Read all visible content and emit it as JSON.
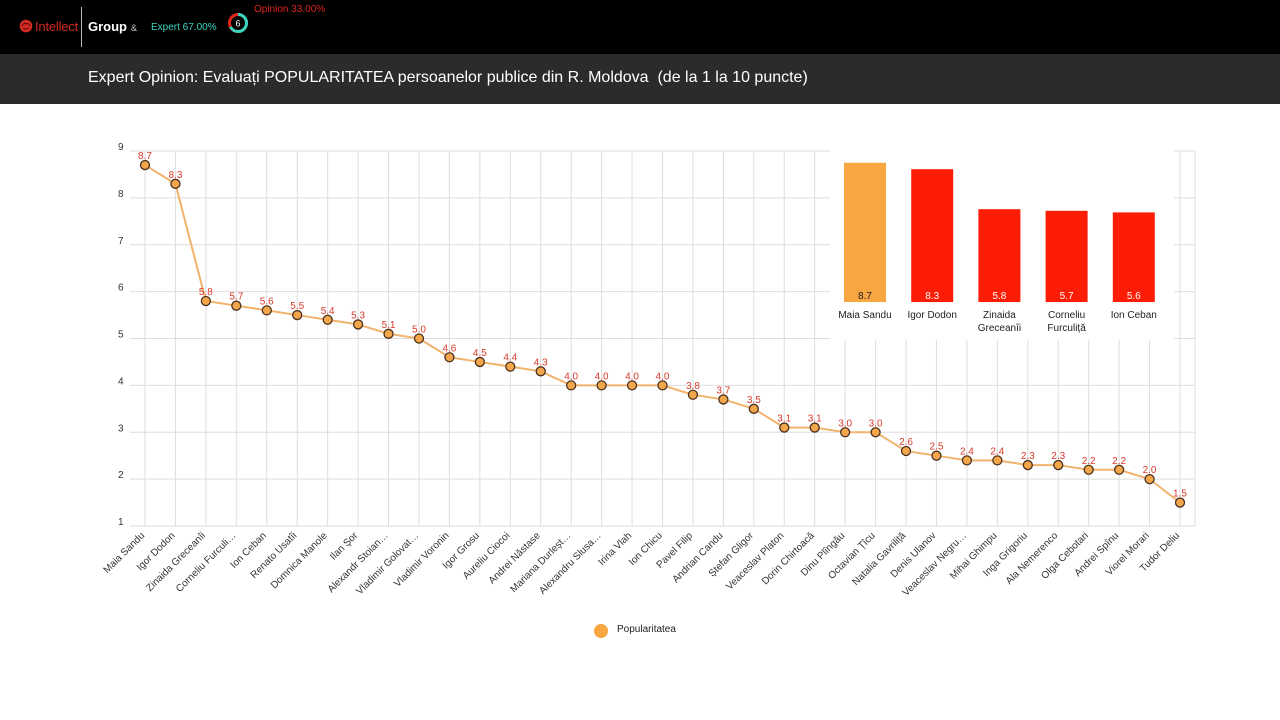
{
  "header": {
    "logo_text": "Intellect",
    "logo_group": "Group",
    "logo_amp": "&",
    "expert_share": "Expert 67.00%",
    "opinion_share": "Opinion 33.00%",
    "donut_center": "6",
    "donut_expert_fraction": 0.67
  },
  "page_title": "Expert Opinion: Evaluați POPULARITATEA persoanelor publice din R. Moldova  (de la 1 la 10 puncte)",
  "colors": {
    "line": "#f2b36d",
    "marker": "#f3a64a",
    "marker_stroke": "#4a3120",
    "label": "#d83a2c",
    "bar_highlight": "#f7a642",
    "bar": "#fd1d07",
    "grid": "#dddddd"
  },
  "chart_data": [
    {
      "type": "line",
      "series": [
        {
          "name": "Popularitatea",
          "values": [
            8.7,
            8.3,
            5.8,
            5.7,
            5.6,
            5.5,
            5.4,
            5.3,
            5.1,
            5.0,
            4.6,
            4.5,
            4.4,
            4.3,
            4.0,
            4.0,
            4.0,
            4.0,
            3.8,
            3.7,
            3.5,
            3.1,
            3.1,
            3.0,
            3.0,
            2.6,
            2.5,
            2.4,
            2.4,
            2.3,
            2.3,
            2.2,
            2.2,
            2.0,
            1.5
          ]
        }
      ],
      "categories": [
        "Maia Sandu",
        "Igor Dodon",
        "Zinaida Greceanîi",
        "Corneliu Furculi…",
        "Ion Ceban",
        "Renato Usatîi",
        "Domnica Manole",
        "Ilan Şor",
        "Alexandr Stoian…",
        "Vladimir Golovat…",
        "Vladimir Voronin",
        "Igor Grosu",
        "Aureliu Ciocoi",
        "Andrei Năstase",
        "Mariana Durleșt…",
        "Alexandru Slusa…",
        "Irina Vlah",
        "Ion Chicu",
        "Pavel Filip",
        "Andrian Candu",
        "Ștefan Gligor",
        "Veaceslav Platon",
        "Dorin Chirtoacă",
        "Dinu Plîngău",
        "Octavian Țîcu",
        "Natalia Gavriliță",
        "Denis Ulanov",
        "Veaceslav Negru…",
        "Mihai Ghimpu",
        "Inga Grigoriu",
        "Ala Nemerenco",
        "Olga Cebotari",
        "Andrei Spînu",
        "Viorel Morari",
        "Tudor Deliu"
      ],
      "value_labels": [
        "8.7",
        "8.3",
        "5.8",
        "5.7",
        "5.6",
        "5.5",
        "5.4",
        "5.3",
        "5.1",
        "5.0",
        "4.6",
        "4.5",
        "4.4",
        "4.3",
        "4.0",
        "4.0",
        "4.0",
        "4.0",
        "3.8",
        "3.7",
        "3.5",
        "3.1",
        "3.1",
        "3.0",
        "3.0",
        "2.6",
        "2.5",
        "2.4",
        "2.4",
        "2.3",
        "2.3",
        "2.2",
        "2.2",
        "2.0",
        "1.5"
      ],
      "ylim": [
        1,
        9
      ],
      "yticks": [
        "1",
        "2",
        "3",
        "4",
        "5",
        "6",
        "7",
        "8",
        "9"
      ],
      "grid": true,
      "legend": "bottom"
    },
    {
      "type": "bar",
      "categories": [
        "Maia Sandu",
        "Igor Dodon",
        "Zinaida Greceanîi",
        "Corneliu Furculiță",
        "Ion Ceban"
      ],
      "category_lines": [
        [
          "Maia Sandu"
        ],
        [
          "Igor Dodon"
        ],
        [
          "Zinaida",
          "Greceanîi"
        ],
        [
          "Corneliu",
          "Furculiță"
        ],
        [
          "Ion Ceban"
        ]
      ],
      "values": [
        8.7,
        8.3,
        5.8,
        5.7,
        5.6
      ],
      "value_labels": [
        "8.7",
        "8.3",
        "5.8",
        "5.7",
        "5.6"
      ],
      "ylim": [
        0,
        9
      ],
      "highlight_index": 0
    }
  ],
  "legend": {
    "label": "Popularitatea"
  }
}
